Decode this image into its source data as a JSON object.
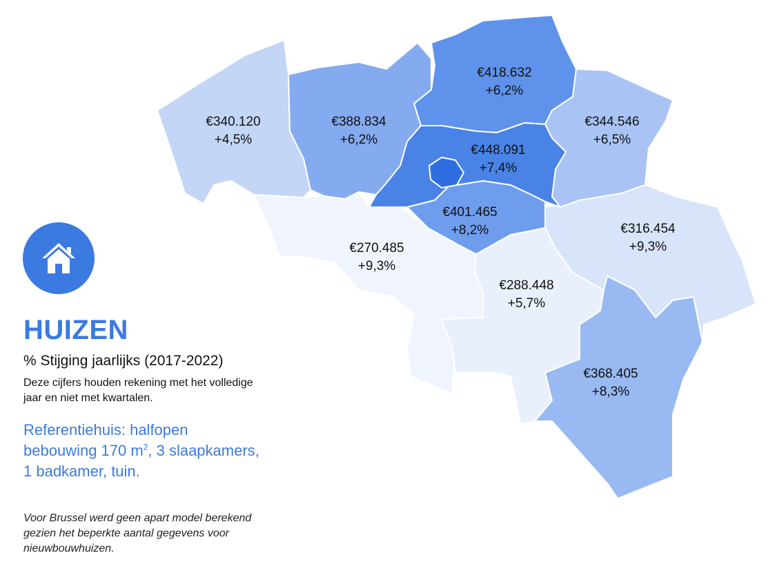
{
  "panel": {
    "title": "HUIZEN",
    "subtitle": "% Stijging jaarlijks (2017-2022)",
    "note": "Deze cijfers houden rekening met het volledige jaar en niet met kwartalen.",
    "reference_line1": "Referentiehuis: halfopen",
    "reference_line2_pre": "bebouwing 170 m",
    "reference_line2_sup": "2",
    "reference_line2_post": ", 3 slaapkamers,",
    "reference_line3": "1 badkamer, tuin.",
    "footnote": "Voor Brussel werd geen apart model berekend gezien het beperkte aantal gegevens voor nieuwbouwhuizen.",
    "icon": "house-icon"
  },
  "colors": {
    "accent": "#3b7ae0",
    "west_vlaanderen": "#c3d6f6",
    "oost_vlaanderen": "#84aaf0",
    "antwerpen": "#5f92ea",
    "vlaams_brabant": "#4a83e6",
    "brussel": "#2f6ee0",
    "limburg": "#a9c4f4",
    "waals_brabant": "#6f9ded",
    "henegouwen": "#f0f5fd",
    "namen": "#e9f0fc",
    "luik": "#d7e4fa",
    "luxemburg": "#98b9f2"
  },
  "regions": [
    {
      "key": "west_vlaanderen",
      "price": "€340.120",
      "growth": "+4,5%"
    },
    {
      "key": "oost_vlaanderen",
      "price": "€388.834",
      "growth": "+6,2%"
    },
    {
      "key": "antwerpen",
      "price": "€418.632",
      "growth": "+6,2%"
    },
    {
      "key": "limburg",
      "price": "€344.546",
      "growth": "+6,5%"
    },
    {
      "key": "vlaams_brabant",
      "price": "€448.091",
      "growth": "+7,4%"
    },
    {
      "key": "waals_brabant",
      "price": "€401.465",
      "growth": "+8,2%"
    },
    {
      "key": "henegouwen",
      "price": "€270.485",
      "growth": "+9,3%"
    },
    {
      "key": "luik",
      "price": "€316.454",
      "growth": "+9,3%"
    },
    {
      "key": "namen",
      "price": "€288.448",
      "growth": "+5,7%"
    },
    {
      "key": "luxemburg",
      "price": "€368.405",
      "growth": "+8,3%"
    }
  ]
}
